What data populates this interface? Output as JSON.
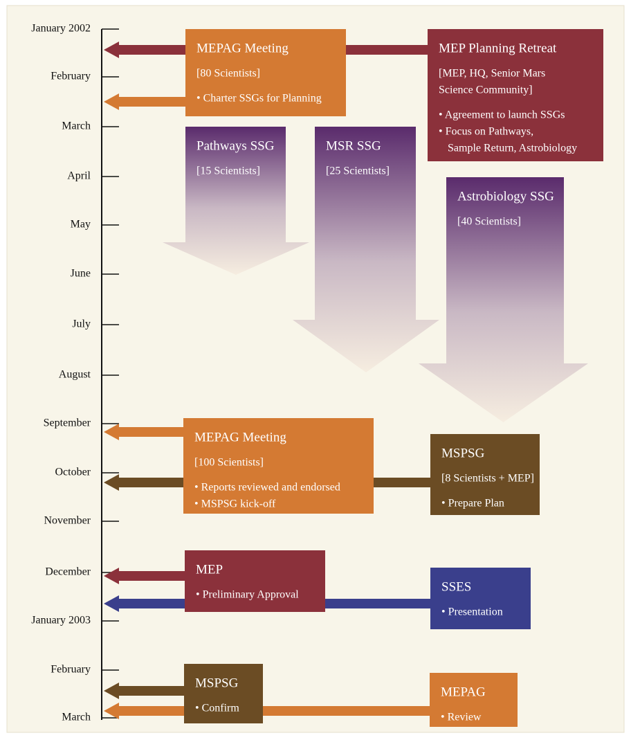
{
  "timeline": {
    "months": [
      "January 2002",
      "February",
      "March",
      "April",
      "May",
      "June",
      "July",
      "August",
      "September",
      "October",
      "November",
      "December",
      "January 2003",
      "February",
      "March"
    ]
  },
  "boxes": [
    {
      "title": "MEPAG Meeting",
      "note": [
        "[80 Scientists]"
      ],
      "bullets": [
        [
          "• Charter SSGs for Planning"
        ]
      ]
    },
    {
      "title": "MEP Planning Retreat",
      "note": [
        "[MEP, HQ, Senior Mars",
        "Science Community]"
      ],
      "bullets": [
        [
          "• Agreement to launch SSGs"
        ],
        [
          "• Focus on Pathways,",
          "Sample Return, Astrobiology"
        ]
      ]
    },
    {
      "title": "Pathways SSG",
      "note": [
        "[15 Scientists]"
      ],
      "bullets": []
    },
    {
      "title": "MSR SSG",
      "note": [
        "[25 Scientists]"
      ],
      "bullets": []
    },
    {
      "title": "Astrobiology SSG",
      "note": [
        "[40 Scientists]"
      ],
      "bullets": []
    },
    {
      "title": "MEPAG Meeting",
      "note": [
        "[100 Scientists]"
      ],
      "bullets": [
        [
          "• Reports reviewed and endorsed"
        ],
        [
          "• MSPSG kick-off"
        ]
      ]
    },
    {
      "title": "MSPSG",
      "note": [
        "[8 Scientists + MEP]"
      ],
      "bullets": [
        [
          "• Prepare Plan"
        ]
      ]
    },
    {
      "title": "MEP",
      "note": [],
      "bullets": [
        [
          "• Preliminary Approval"
        ]
      ]
    },
    {
      "title": "SSES",
      "note": [],
      "bullets": [
        [
          "• Presentation"
        ]
      ]
    },
    {
      "title": "MSPSG",
      "note": [],
      "bullets": [
        [
          "• Confirm"
        ]
      ]
    },
    {
      "title": "MEPAG",
      "note": [],
      "bullets": [
        [
          "• Review"
        ]
      ]
    }
  ]
}
